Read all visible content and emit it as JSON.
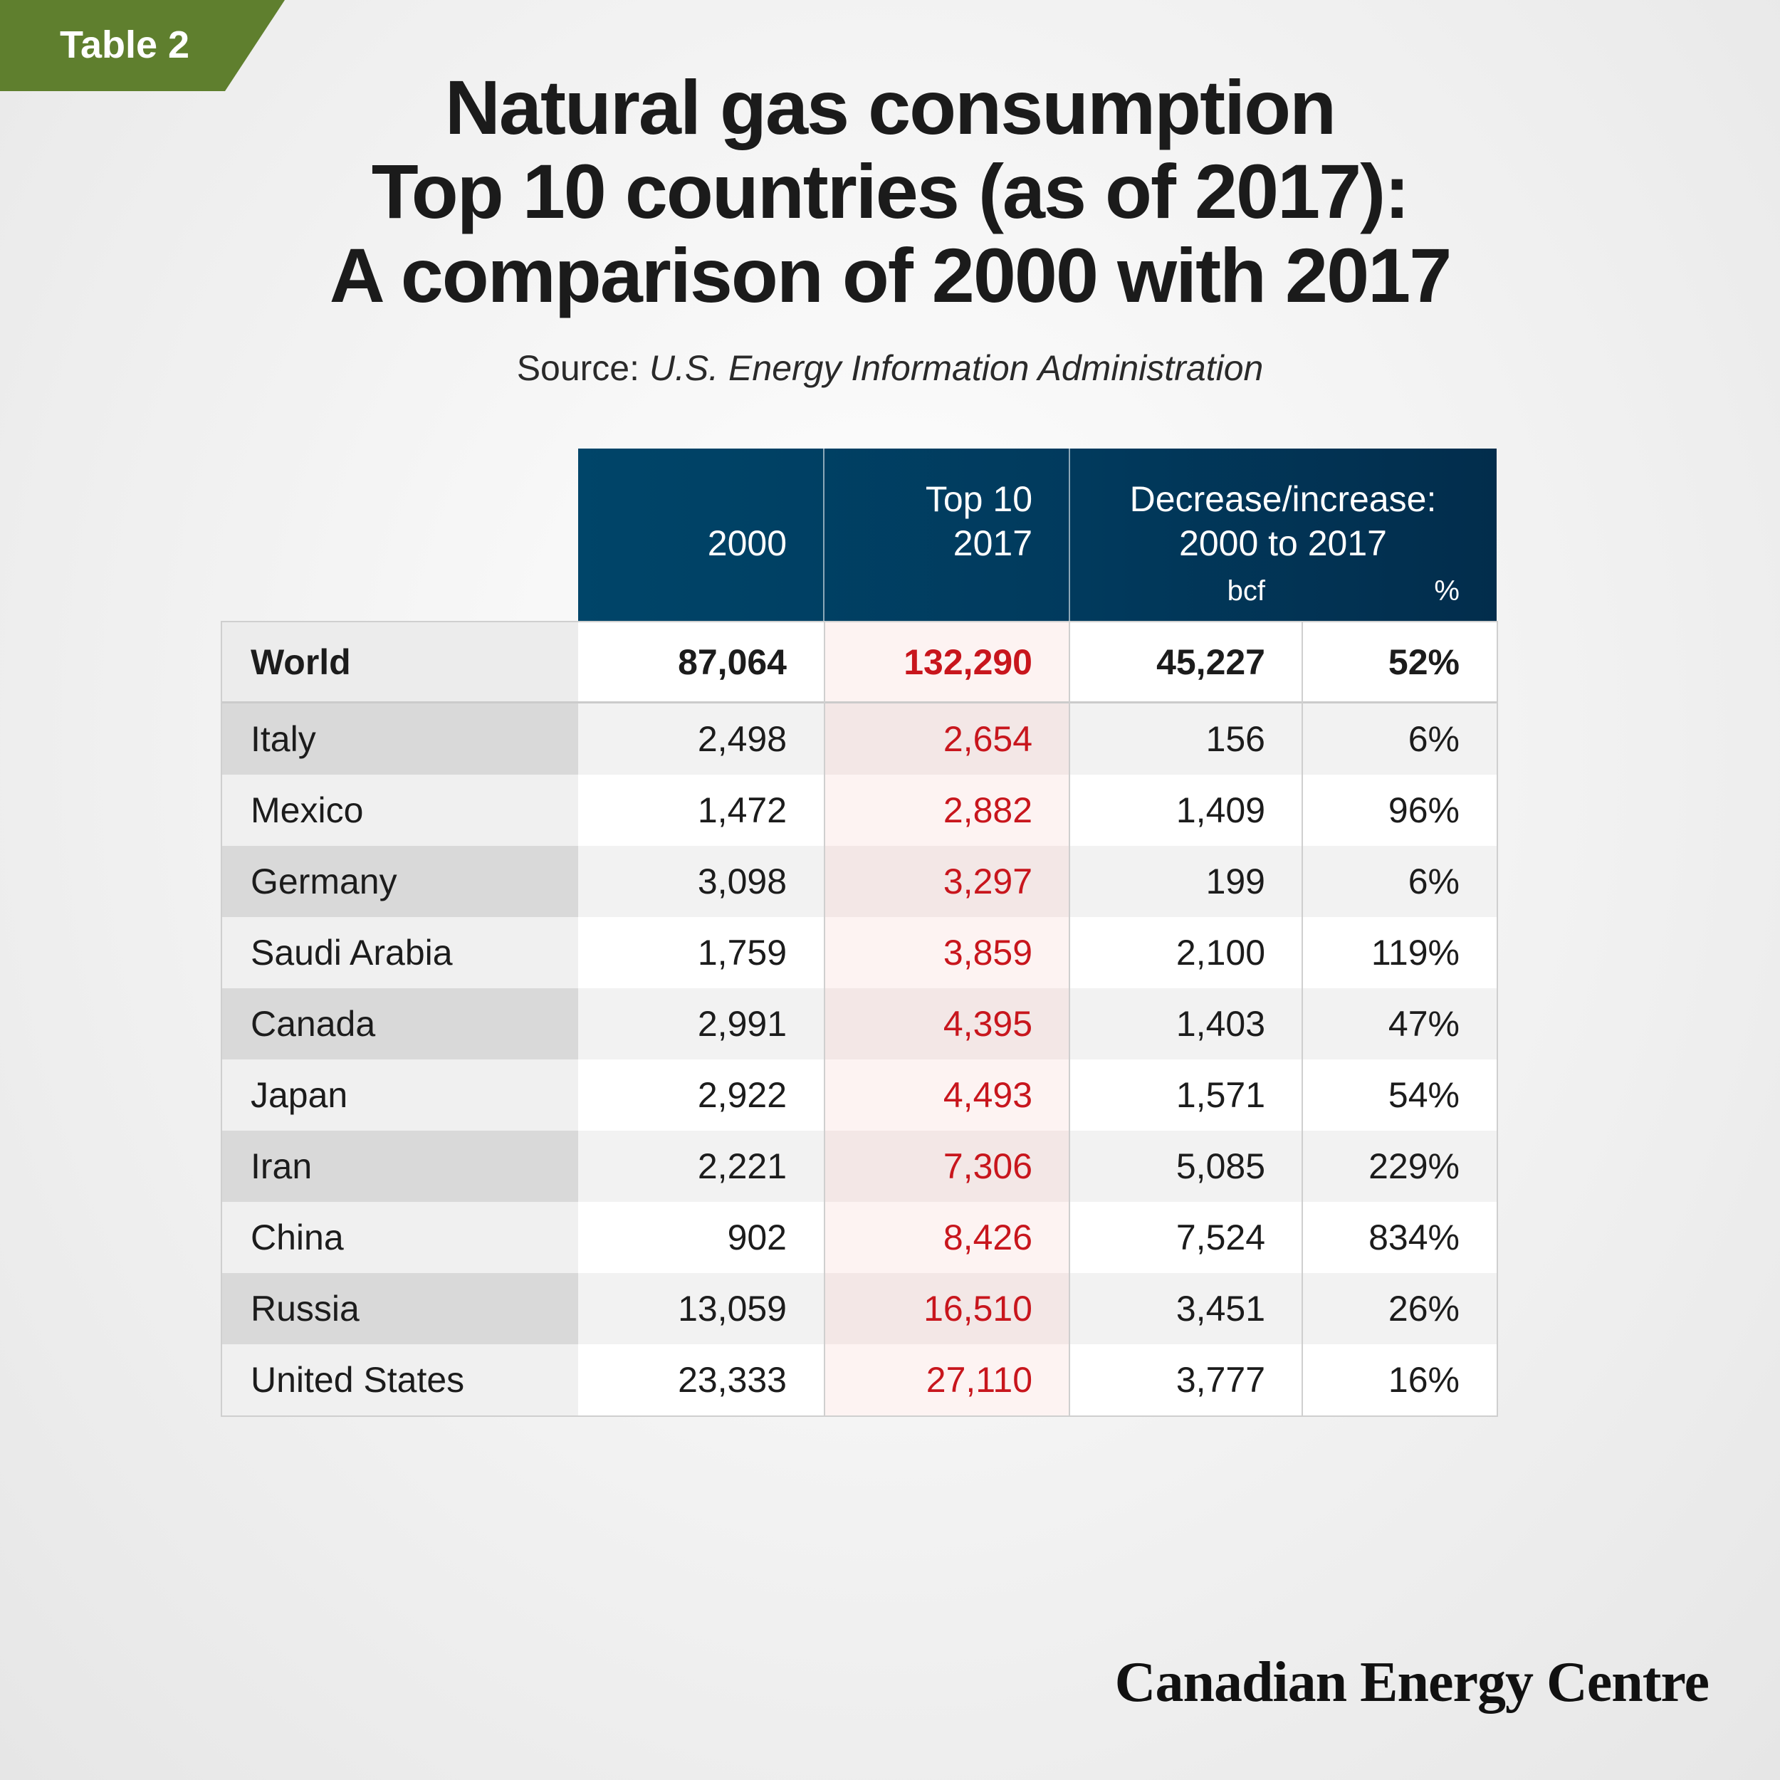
{
  "tag": {
    "label": "Table 2",
    "color": "#5f7f2e"
  },
  "title": {
    "line1": "Natural gas consumption",
    "line2": "Top 10 countries (as of 2017):",
    "line3": "A comparison of 2000 with 2017"
  },
  "source": {
    "prefix": "Source: ",
    "name": "U.S. Energy Information Administration"
  },
  "header": {
    "col_2000": "2000",
    "col_2017_line1": "Top 10",
    "col_2017_line2": "2017",
    "col_change_line1": "Decrease/increase:",
    "col_change_line2": "2000 to 2017",
    "sub_bcf": "bcf",
    "sub_pct": "%",
    "color": "#013a5d"
  },
  "chart_data": {
    "type": "table",
    "title": "Natural gas consumption Top 10 countries (as of 2017): A comparison of 2000 with 2017",
    "columns": [
      "",
      "2000",
      "Top 10 2017",
      "Decrease/increase: 2000 to 2017 bcf",
      "Decrease/increase: 2000 to 2017 %"
    ],
    "world": {
      "name": "World",
      "y2000": "87,064",
      "y2017": "132,290",
      "bcf": "45,227",
      "pct": "52%"
    },
    "rows": [
      {
        "name": "Italy",
        "y2000": "2,498",
        "y2017": "2,654",
        "bcf": "156",
        "pct": "6%"
      },
      {
        "name": "Mexico",
        "y2000": "1,472",
        "y2017": "2,882",
        "bcf": "1,409",
        "pct": "96%"
      },
      {
        "name": "Germany",
        "y2000": "3,098",
        "y2017": "3,297",
        "bcf": "199",
        "pct": "6%"
      },
      {
        "name": "Saudi Arabia",
        "y2000": "1,759",
        "y2017": "3,859",
        "bcf": "2,100",
        "pct": "119%"
      },
      {
        "name": "Canada",
        "y2000": "2,991",
        "y2017": "4,395",
        "bcf": "1,403",
        "pct": "47%"
      },
      {
        "name": "Japan",
        "y2000": "2,922",
        "y2017": "4,493",
        "bcf": "1,571",
        "pct": "54%"
      },
      {
        "name": "Iran",
        "y2000": "2,221",
        "y2017": "7,306",
        "bcf": "5,085",
        "pct": "229%"
      },
      {
        "name": "China",
        "y2000": "902",
        "y2017": "8,426",
        "bcf": "7,524",
        "pct": "834%"
      },
      {
        "name": "Russia",
        "y2000": "13,059",
        "y2017": "16,510",
        "bcf": "3,451",
        "pct": "26%"
      },
      {
        "name": "United States",
        "y2000": "23,333",
        "y2017": "27,110",
        "bcf": "3,777",
        "pct": "16%"
      }
    ],
    "highlight_color": "#c8161d"
  },
  "footer": {
    "logo": "Canadian Energy Centre"
  }
}
